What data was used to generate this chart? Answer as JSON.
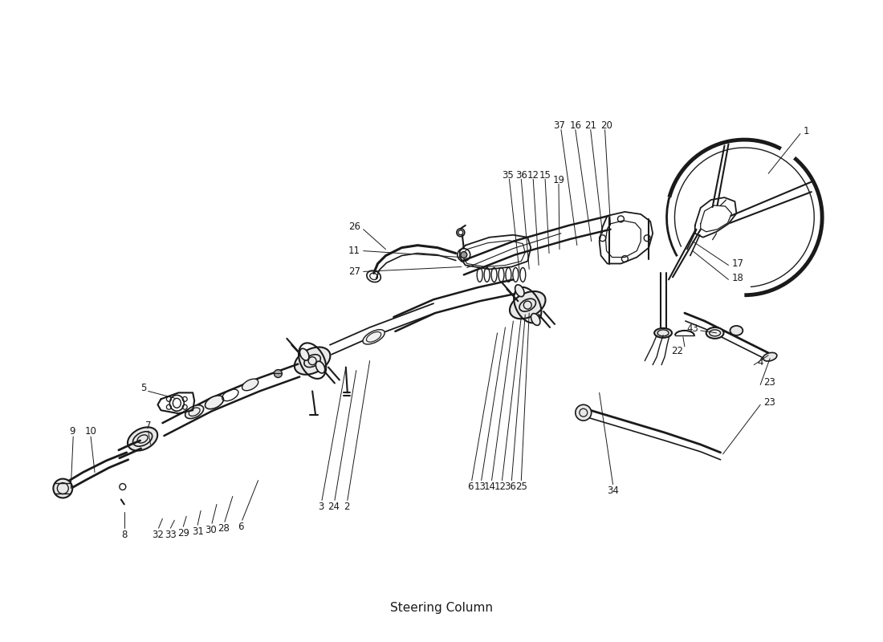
{
  "bg_color": "#ffffff",
  "line_color": "#1a1a1a",
  "figsize": [
    11.0,
    8.0
  ],
  "dpi": 100,
  "title": "Steering Column"
}
